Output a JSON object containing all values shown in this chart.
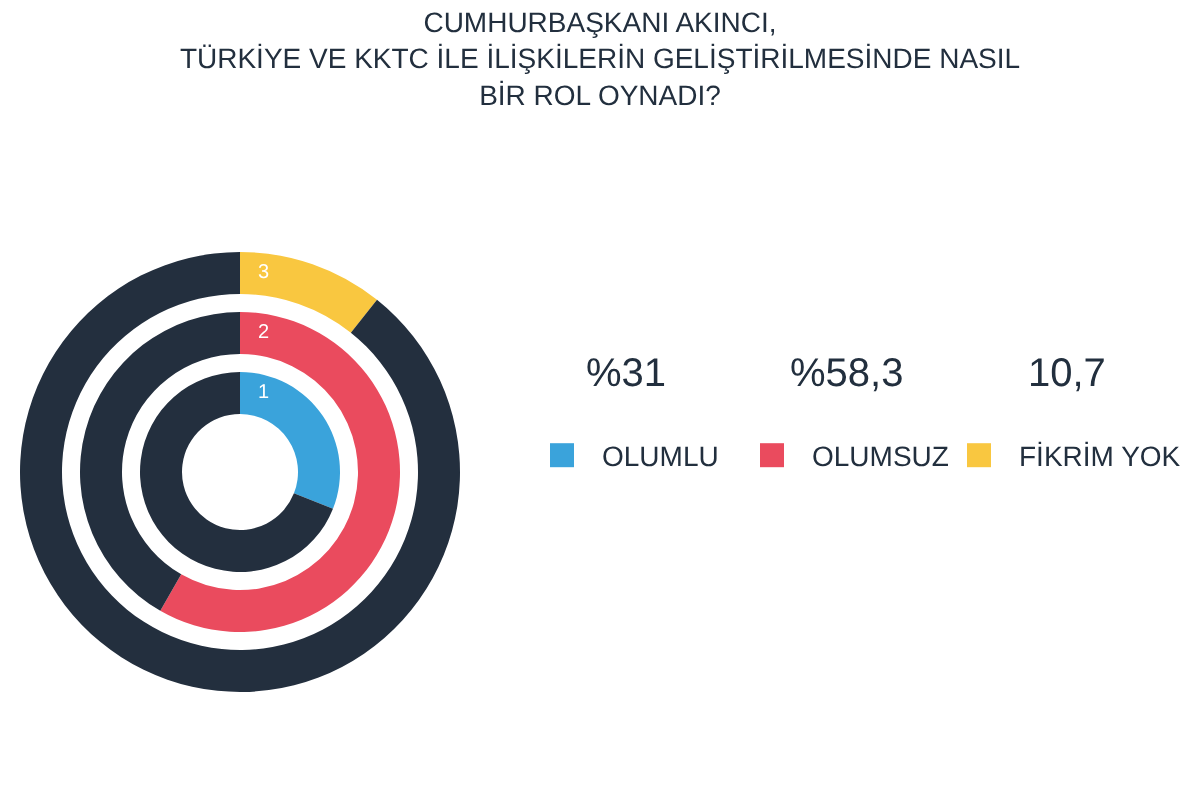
{
  "chart_data": [
    {
      "type": "donut",
      "title": "CUMHURBAŞKANI AKINCI,\nTÜRKİYE VE KKTC İLE İLİŞKİLERİN GELİŞTİRİLMESİNDE NASIL\nBİR ROL OYNADI?",
      "categories": [
        "OLUMLU",
        null
      ],
      "values": [
        31,
        69
      ],
      "colors": [
        "#3aa3db",
        "#232f3e"
      ],
      "annotations": [
        "1",
        "%31"
      ],
      "legend": "right"
    },
    {
      "type": "donut",
      "categories": [
        "OLUMSUZ",
        null
      ],
      "values": [
        58.3,
        41.7
      ],
      "colors": [
        "#ea4b5e",
        "#232f3e"
      ],
      "annotations": [
        "2",
        "%58,3"
      ],
      "legend": "right"
    },
    {
      "type": "donut",
      "categories": [
        "FİKRİM YOK",
        null
      ],
      "values": [
        10.7,
        89.3
      ],
      "colors": [
        "#f9c740",
        "#232f3e"
      ],
      "annotations": [
        "3",
        "10,7"
      ],
      "legend": "right"
    }
  ]
}
